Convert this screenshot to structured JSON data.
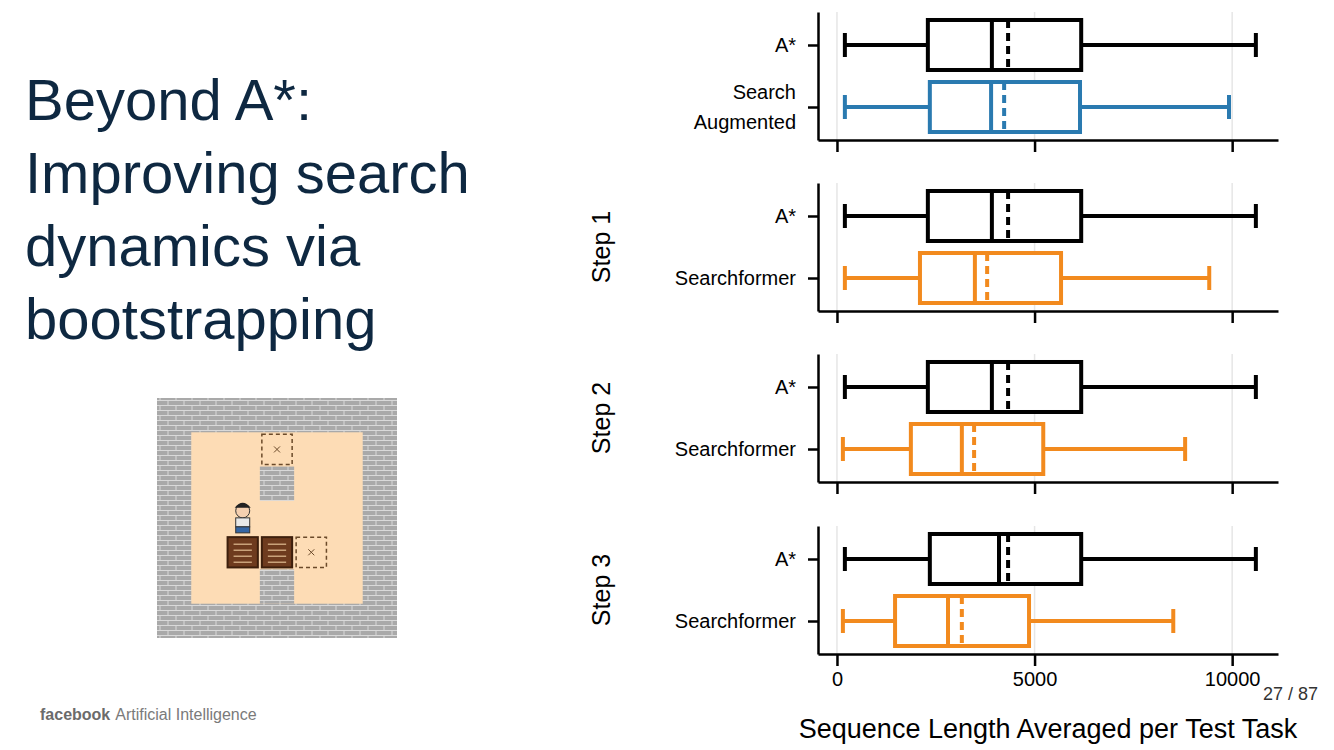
{
  "slide": {
    "title": [
      "Beyond A*:",
      "Improving search",
      "dynamics via",
      "bootstrapping"
    ],
    "footer_brand": "facebook",
    "footer_text": "Artificial Intelligence",
    "page_number": "27 / 87"
  },
  "chart_data": [
    {
      "type": "box",
      "orientation": "horizontal",
      "categories": [
        "A*",
        "Search Augmented"
      ],
      "colors": [
        "#000000",
        "#2a7ab0"
      ],
      "whisker_low": [
        200,
        200
      ],
      "q1": [
        2300,
        2350
      ],
      "median": [
        3920,
        3900
      ],
      "mean": [
        4330,
        4230
      ],
      "q3": [
        6180,
        6150
      ],
      "whisker_high": [
        10600,
        9920
      ],
      "xlim": [
        -480,
        11160
      ],
      "xticks": [
        0,
        5000,
        10000
      ],
      "grid": true,
      "tick_labels": "y"
    },
    {
      "type": "box",
      "orientation": "horizontal",
      "ylabel": "Step 1",
      "categories": [
        "A*",
        "Searchformer"
      ],
      "colors": [
        "#000000",
        "#f28a1e"
      ],
      "whisker_low": [
        200,
        200
      ],
      "q1": [
        2300,
        2100
      ],
      "median": [
        3920,
        3490
      ],
      "mean": [
        4330,
        3800
      ],
      "q3": [
        6180,
        5670
      ],
      "whisker_high": [
        10600,
        9420
      ],
      "xlim": [
        -480,
        11160
      ],
      "xticks": [
        0,
        5000,
        10000
      ],
      "grid": true,
      "tick_labels": "y"
    },
    {
      "type": "box",
      "orientation": "horizontal",
      "ylabel": "Step 2",
      "categories": [
        "A*",
        "Searchformer"
      ],
      "colors": [
        "#000000",
        "#f28a1e"
      ],
      "whisker_low": [
        200,
        150
      ],
      "q1": [
        2300,
        1870
      ],
      "median": [
        3920,
        3160
      ],
      "mean": [
        4330,
        3470
      ],
      "q3": [
        6180,
        5220
      ],
      "whisker_high": [
        10600,
        8810
      ],
      "xlim": [
        -480,
        11160
      ],
      "xticks": [
        0,
        5000,
        10000
      ],
      "grid": true,
      "tick_labels": "y"
    },
    {
      "type": "box",
      "orientation": "horizontal",
      "ylabel": "Step 3",
      "categories": [
        "A*",
        "Searchformer"
      ],
      "colors": [
        "#000000",
        "#f28a1e"
      ],
      "whisker_low": [
        200,
        150
      ],
      "q1": [
        2350,
        1470
      ],
      "median": [
        4100,
        2810
      ],
      "mean": [
        4330,
        3160
      ],
      "q3": [
        6180,
        4860
      ],
      "whisker_high": [
        10600,
        8510
      ],
      "xlim": [
        -480,
        11160
      ],
      "xticks": [
        0,
        5000,
        10000
      ],
      "grid": true,
      "xlabel": "Sequence Length Averaged per Test Task"
    }
  ]
}
